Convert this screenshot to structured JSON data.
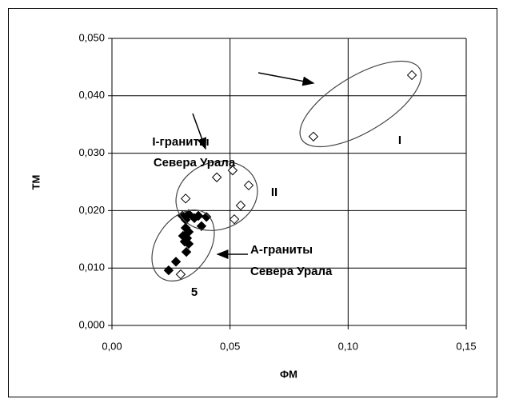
{
  "chart_data": {
    "type": "scatter",
    "x_label": "ФМ",
    "y_label": "ТМ",
    "xlim": [
      0,
      0.15
    ],
    "ylim": [
      0,
      0.05
    ],
    "xticks": [
      {
        "value": 0,
        "label": "0,00"
      },
      {
        "value": 0.05,
        "label": "0,05"
      },
      {
        "value": 0.1,
        "label": "0,10"
      },
      {
        "value": 0.15,
        "label": "0,15"
      }
    ],
    "yticks": [
      {
        "value": 0,
        "label": "0,000"
      },
      {
        "value": 0.01,
        "label": "0,010"
      },
      {
        "value": 0.02,
        "label": "0,020"
      },
      {
        "value": 0.03,
        "label": "0,030"
      },
      {
        "value": 0.04,
        "label": "0,040"
      },
      {
        "value": 0.05,
        "label": "0,050"
      }
    ],
    "grid": true,
    "series": [
      {
        "marker": "open-diamond",
        "color": "#000000",
        "x": [
          0.127,
          0.0853,
          0.0312,
          0.0444,
          0.0511,
          0.0579,
          0.0545,
          0.0518,
          0.0291
        ],
        "values": [
          0.0436,
          0.0329,
          0.0221,
          0.0258,
          0.027,
          0.0244,
          0.0209,
          0.0185,
          0.0089
        ]
      },
      {
        "marker": "filled-diamond",
        "color": "#000000",
        "x": [
          0.024,
          0.0271,
          0.0298,
          0.0312,
          0.0325,
          0.0312,
          0.0318,
          0.0308,
          0.0325,
          0.0315,
          0.0325,
          0.0349,
          0.0379,
          0.04,
          0.0366,
          0.0301
        ],
        "values": [
          0.0096,
          0.0111,
          0.0191,
          0.0184,
          0.0194,
          0.017,
          0.0152,
          0.0146,
          0.0142,
          0.0128,
          0.0163,
          0.0187,
          0.0173,
          0.0189,
          0.0191,
          0.0156
        ]
      }
    ],
    "annotations": [
      "I-граниты",
      "Севера Урала",
      "I",
      "II",
      "А-граниты",
      "Севера Урала",
      "5"
    ]
  }
}
